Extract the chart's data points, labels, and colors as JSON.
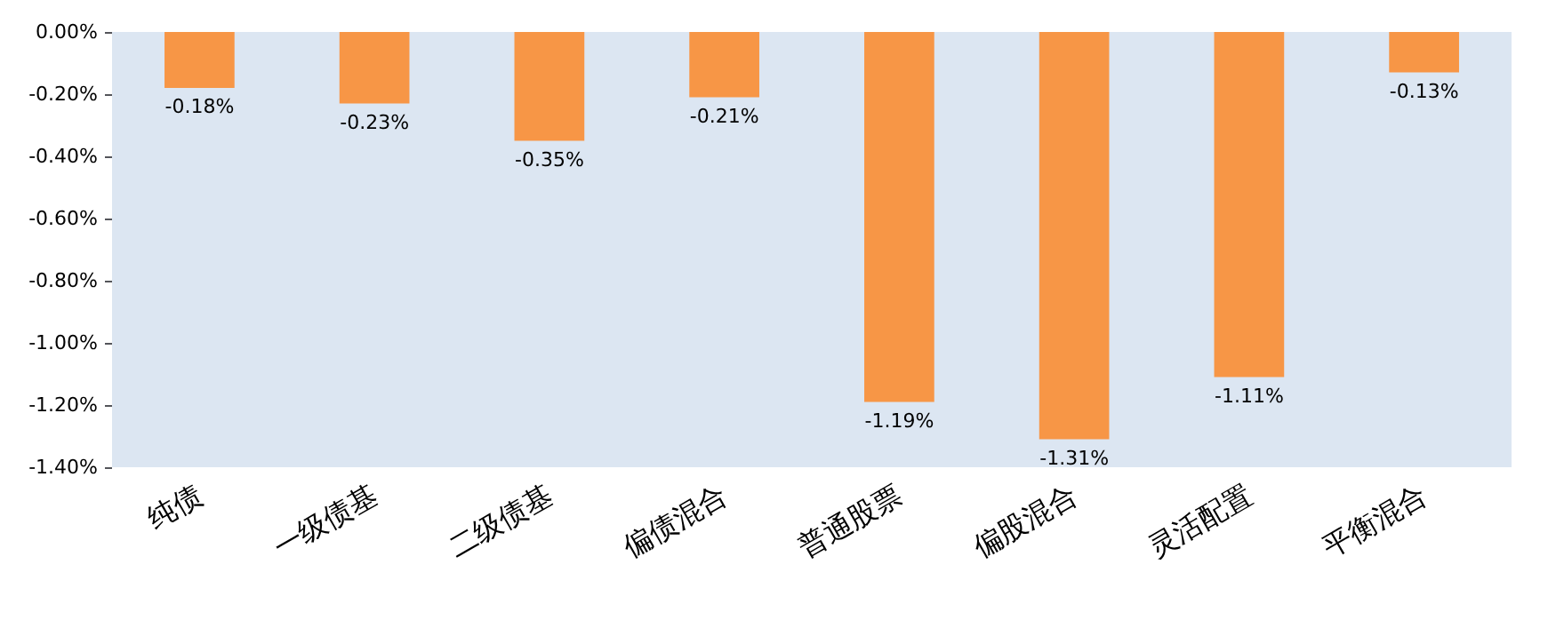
{
  "chart_data": {
    "type": "bar",
    "categories": [
      "纯债",
      "一级债基",
      "二级债基",
      "偏债混合",
      "普通股票",
      "偏股混合",
      "灵活配置",
      "平衡混合"
    ],
    "values": [
      -0.18,
      -0.23,
      -0.35,
      -0.21,
      -1.19,
      -1.31,
      -1.11,
      -0.13
    ],
    "value_labels": [
      "-0.18%",
      "-0.23%",
      "-0.35%",
      "-0.21%",
      "-1.19%",
      "-1.31%",
      "-1.11%",
      "-0.13%"
    ],
    "color": "#f79646",
    "ylim": [
      -1.4,
      0
    ],
    "yticks": [
      {
        "value": 0,
        "label": "0.00%"
      },
      {
        "value": -0.2,
        "label": "-0.20%"
      },
      {
        "value": -0.4,
        "label": "-0.40%"
      },
      {
        "value": -0.6,
        "label": "-0.60%"
      },
      {
        "value": -0.8,
        "label": "-0.80%"
      },
      {
        "value": -1,
        "label": "-1.00%"
      },
      {
        "value": -1.2,
        "label": "-1.20%"
      },
      {
        "value": -1.4,
        "label": "-1.40%"
      }
    ],
    "grid": false
  }
}
